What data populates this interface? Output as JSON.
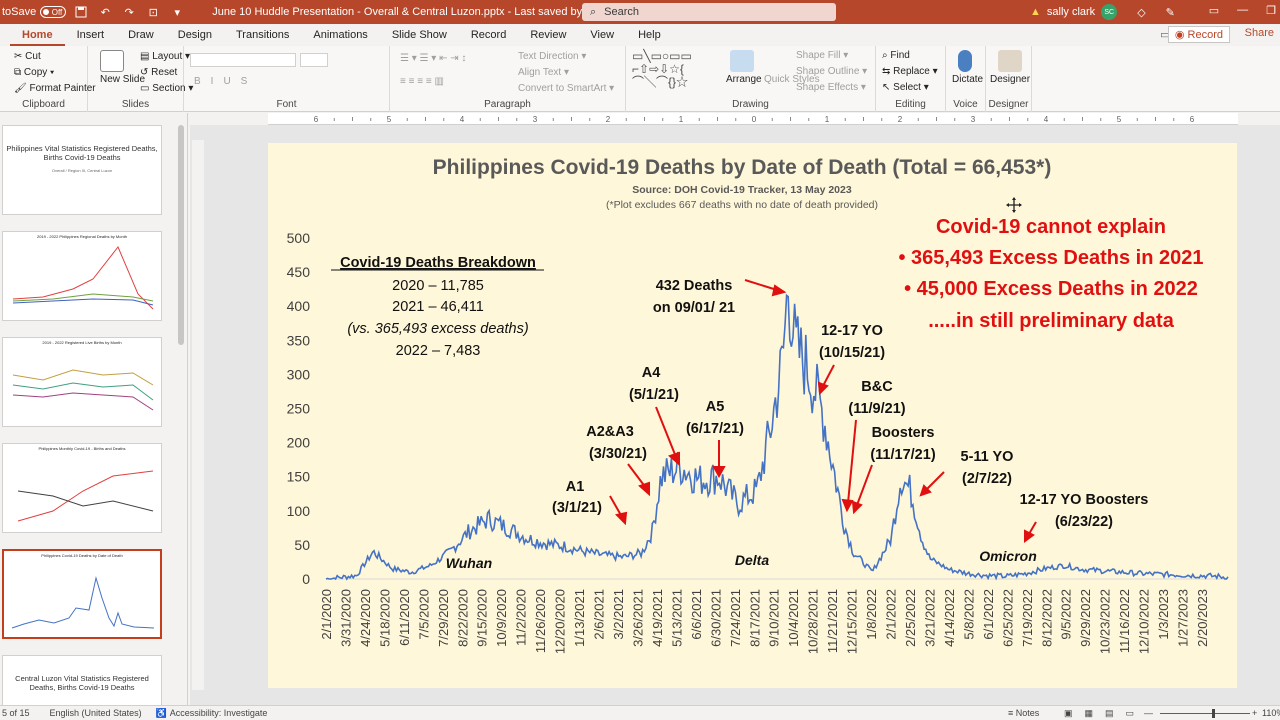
{
  "titlebar": {
    "autosave_label": "toSave",
    "autosave_state": "Off",
    "document_title": "June 10 Huddle Presentation - Overall & Central Luzon.pptx  -  Last saved by...  •  Saved to this PC",
    "search_placeholder": "Search",
    "user_name": "sally clark",
    "user_initials": "SC"
  },
  "tabs": [
    "Home",
    "Insert",
    "Draw",
    "Design",
    "Transitions",
    "Animations",
    "Slide Show",
    "Record",
    "Review",
    "View",
    "Help"
  ],
  "active_tab": "Home",
  "record_label": "Record",
  "share_label": "Share",
  "ribbon": {
    "clipboard": {
      "label": "Clipboard",
      "cut": "Cut",
      "copy": "Copy",
      "format_painter": "Format Painter"
    },
    "slides": {
      "label": "Slides",
      "new_slide": "New Slide",
      "layout": "Layout",
      "reset": "Reset",
      "section": "Section"
    },
    "font": {
      "label": "Font"
    },
    "paragraph": {
      "label": "Paragraph",
      "text_direction": "Text Direction",
      "align_text": "Align Text",
      "smartart": "Convert to SmartArt"
    },
    "drawing": {
      "label": "Drawing",
      "arrange": "Arrange",
      "quick_styles": "Quick Styles",
      "shape_fill": "Shape Fill",
      "shape_outline": "Shape Outline",
      "shape_effects": "Shape Effects"
    },
    "editing": {
      "label": "Editing",
      "find": "Find",
      "replace": "Replace",
      "select": "Select"
    },
    "voice": {
      "label": "Voice",
      "dictate": "Dictate"
    },
    "designer": {
      "label": "Designer",
      "designer_btn": "Designer"
    }
  },
  "thumbnails": [
    {
      "title": "Philippines Vital Statistics Registered Deaths, Births Covid-19 Deaths",
      "sub": "Overall / Region III, Central Luzon"
    },
    {
      "title": "2019 - 2022 Philippines Regional Deaths by Month",
      "sub": ""
    },
    {
      "title": "2019 - 2022 Registered Live Births by Month",
      "sub": ""
    },
    {
      "title": "Philippines Monthly Covid-19 - Births and Deaths",
      "sub": ""
    },
    {
      "title": "Philippines Covid-19 Deaths by Date of Death",
      "sub": ""
    },
    {
      "title": "Central Luzon Vital Statistics Registered Deaths, Births Covid-19 Deaths",
      "sub": ""
    }
  ],
  "ruler_labels": [
    "6",
    "5",
    "4",
    "3",
    "2",
    "1",
    "0",
    "1",
    "2",
    "3",
    "4",
    "5",
    "6"
  ],
  "slide": {
    "title": "Philippines Covid-19 Deaths by Date of Death (Total = 66,453*)",
    "source": "Source: DOH Covid-19 Tracker, 13 May 2023",
    "note": "(*Plot excludes 667 deaths with no date of death provided)",
    "breakdown": {
      "title": "Covid-19 Deaths Breakdown",
      "lines": [
        "2020 – 11,785",
        "2021 – 46,411",
        "(vs. 365,493 excess deaths)",
        "2022 – 7,483"
      ]
    },
    "red_text": [
      "Covid-19 cannot explain",
      "• 365,493 Excess Deaths in 2021",
      "• 45,000 Excess Deaths in 2022",
      ".....in still preliminary data"
    ],
    "annotations": [
      {
        "l1": "A1",
        "l2": "(3/1/21)"
      },
      {
        "l1": "A2&A3",
        "l2": "(3/30/21)"
      },
      {
        "l1": "A4",
        "l2": "(5/1/21)"
      },
      {
        "l1": "A5",
        "l2": "(6/17/21)"
      },
      {
        "l1": "432 Deaths",
        "l2": "on 09/01/ 21"
      },
      {
        "l1": "12-17 YO",
        "l2": "(10/15/21)"
      },
      {
        "l1": "B&C",
        "l2": "(11/9/21)"
      },
      {
        "l1": "Boosters",
        "l2": "(11/17/21)"
      },
      {
        "l1": "5-11 YO",
        "l2": "(2/7/22)"
      },
      {
        "l1": "12-17 YO Boosters",
        "l2": "(6/23/22)"
      }
    ],
    "waves": [
      "Wuhan",
      "Delta",
      "Omicron"
    ]
  },
  "chart_data": {
    "type": "line",
    "title": "Philippines Covid-19 Deaths by Date of Death (Total = 66,453*)",
    "ylim": [
      0,
      500
    ],
    "yticks": [
      0,
      50,
      100,
      150,
      200,
      250,
      300,
      350,
      400,
      450,
      500
    ],
    "x_tick_labels": [
      "2/1/2020",
      "3/31/2020",
      "4/24/2020",
      "5/18/2020",
      "6/11/2020",
      "7/5/2020",
      "7/29/2020",
      "8/22/2020",
      "9/15/2020",
      "10/9/2020",
      "11/2/2020",
      "11/26/2020",
      "12/20/2020",
      "1/13/2021",
      "2/6/2021",
      "3/2/2021",
      "3/26/2021",
      "4/19/2021",
      "5/13/2021",
      "6/6/2021",
      "6/30/2021",
      "7/24/2021",
      "8/17/2021",
      "9/10/2021",
      "10/4/2021",
      "10/28/2021",
      "11/21/2021",
      "12/15/2021",
      "1/8/2022",
      "2/1/2022",
      "2/25/2022",
      "3/21/2022",
      "4/14/2022",
      "5/8/2022",
      "6/1/2022",
      "6/25/2022",
      "7/19/2022",
      "8/12/2022",
      "9/5/2022",
      "9/29/2022",
      "10/23/2022",
      "11/16/2022",
      "12/10/2022",
      "1/3/2023",
      "1/27/2023",
      "2/20/2023"
    ],
    "series": [
      {
        "color": "#4472c4",
        "points": [
          [
            "2020-02-01",
            0
          ],
          [
            "2020-03-10",
            5
          ],
          [
            "2020-03-31",
            40
          ],
          [
            "2020-04-24",
            15
          ],
          [
            "2020-05-18",
            10
          ],
          [
            "2020-06-11",
            20
          ],
          [
            "2020-07-05",
            40
          ],
          [
            "2020-07-29",
            70
          ],
          [
            "2020-08-22",
            88
          ],
          [
            "2020-09-15",
            75
          ],
          [
            "2020-10-09",
            60
          ],
          [
            "2020-11-02",
            52
          ],
          [
            "2020-11-26",
            48
          ],
          [
            "2020-12-20",
            40
          ],
          [
            "2021-01-13",
            35
          ],
          [
            "2021-02-06",
            32
          ],
          [
            "2021-03-02",
            38
          ],
          [
            "2021-03-15",
            70
          ],
          [
            "2021-03-26",
            150
          ],
          [
            "2021-04-19",
            165
          ],
          [
            "2021-05-13",
            145
          ],
          [
            "2021-06-06",
            150
          ],
          [
            "2021-06-30",
            110
          ],
          [
            "2021-07-24",
            130
          ],
          [
            "2021-08-10",
            220
          ],
          [
            "2021-08-25",
            320
          ],
          [
            "2021-09-01",
            432
          ],
          [
            "2021-09-10",
            340
          ],
          [
            "2021-09-25",
            310
          ],
          [
            "2021-10-04",
            280
          ],
          [
            "2021-10-15",
            240
          ],
          [
            "2021-10-28",
            160
          ],
          [
            "2021-11-10",
            80
          ],
          [
            "2021-11-21",
            40
          ],
          [
            "2021-12-15",
            10
          ],
          [
            "2022-01-08",
            60
          ],
          [
            "2022-01-20",
            150
          ],
          [
            "2022-02-01",
            130
          ],
          [
            "2022-02-15",
            60
          ],
          [
            "2022-02-25",
            30
          ],
          [
            "2022-03-21",
            14
          ],
          [
            "2022-04-14",
            8
          ],
          [
            "2022-05-08",
            5
          ],
          [
            "2022-06-01",
            4
          ],
          [
            "2022-06-25",
            8
          ],
          [
            "2022-07-19",
            15
          ],
          [
            "2022-08-12",
            20
          ],
          [
            "2022-09-05",
            14
          ],
          [
            "2022-10-23",
            10
          ],
          [
            "2022-11-16",
            8
          ],
          [
            "2022-12-10",
            7
          ],
          [
            "2023-01-03",
            6
          ],
          [
            "2023-01-27",
            5
          ],
          [
            "2023-02-20",
            4
          ],
          [
            "2023-03-05",
            2
          ]
        ]
      }
    ]
  },
  "status": {
    "slide_counter": "5 of 15",
    "language": "English (United States)",
    "accessibility": "Accessibility: Investigate",
    "notes": "Notes",
    "zoom": "110%"
  }
}
